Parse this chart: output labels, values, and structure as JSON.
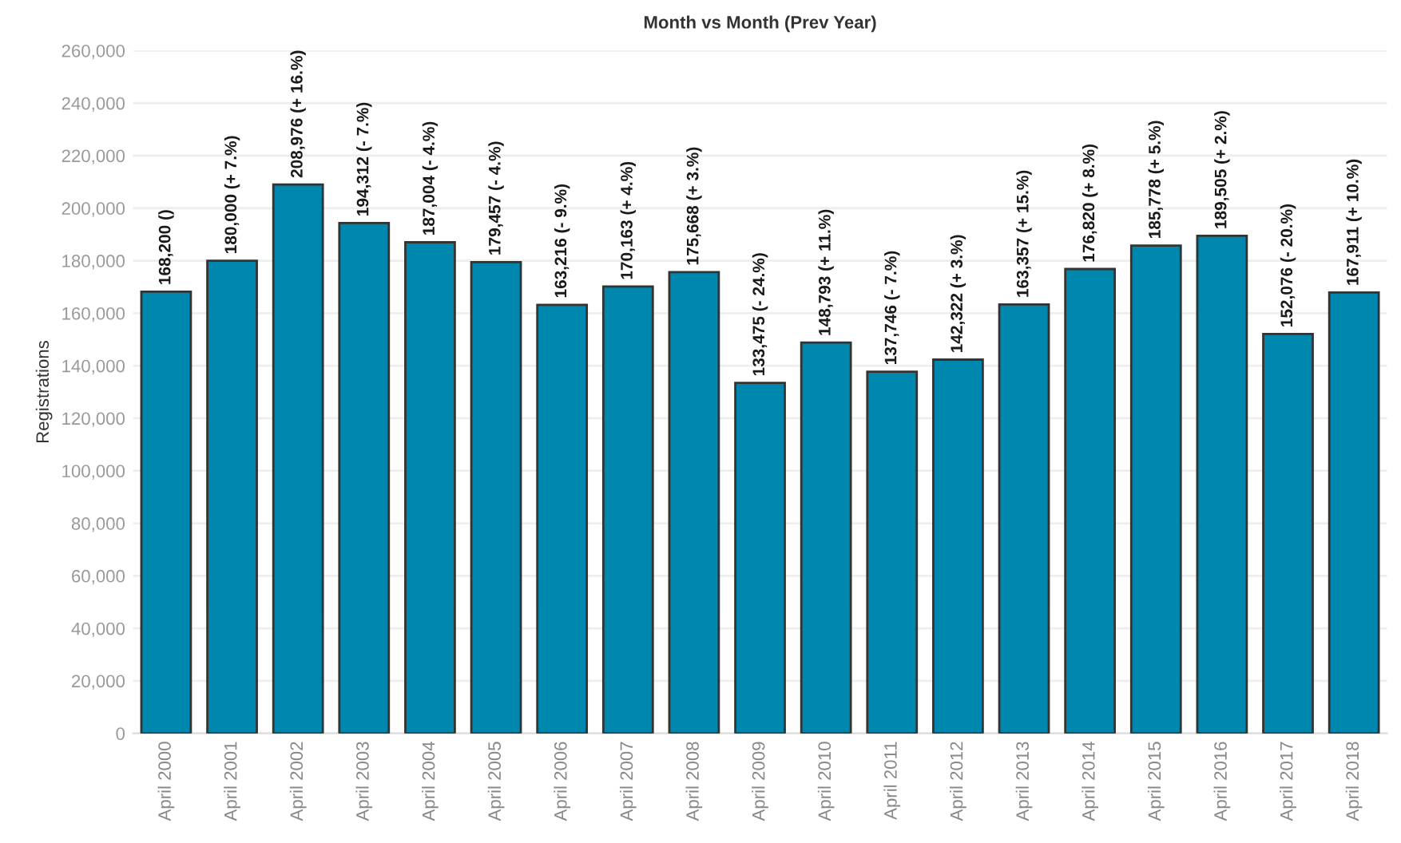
{
  "chart_data": {
    "type": "bar",
    "title": "Month vs Month (Prev Year)",
    "ylabel": "Registrations",
    "categories": [
      "April 2000",
      "April 2001",
      "April 2002",
      "April 2003",
      "April 2004",
      "April 2005",
      "April 2006",
      "April 2007",
      "April 2008",
      "April 2009",
      "April 2010",
      "April 2011",
      "April 2012",
      "April 2013",
      "April 2014",
      "April 2015",
      "April 2016",
      "April 2017",
      "April 2018"
    ],
    "values": [
      168200,
      180000,
      208976,
      194312,
      187004,
      179457,
      163216,
      170163,
      175668,
      133475,
      148793,
      137746,
      142322,
      163357,
      176820,
      185778,
      189505,
      152076,
      167911
    ],
    "value_labels": [
      "168,200 ()",
      "180,000 (+ 7.%)",
      "208,976 (+ 16.%)",
      "194,312 (- 7.%)",
      "187,004 (- 4.%)",
      "179,457 (- 4.%)",
      "163,216 (- 9.%)",
      "170,163 (+ 4.%)",
      "175,668 (+ 3.%)",
      "133,475 (- 24.%)",
      "148,793 (+ 11.%)",
      "137,746 (- 7.%)",
      "142,322 (+ 3.%)",
      "163,357 (+ 15.%)",
      "176,820 (+ 8.%)",
      "185,778 (+ 5.%)",
      "189,505 (+ 2.%)",
      "152,076 (- 20.%)",
      "167,911 (+ 10.%)"
    ],
    "color": "#0087ae",
    "ylim": [
      0,
      260000
    ],
    "yticks": [
      {
        "value": 0,
        "label": "0"
      },
      {
        "value": 20000,
        "label": "20,000"
      },
      {
        "value": 40000,
        "label": "40,000"
      },
      {
        "value": 60000,
        "label": "60,000"
      },
      {
        "value": 80000,
        "label": "80,000"
      },
      {
        "value": 100000,
        "label": "100,000"
      },
      {
        "value": 120000,
        "label": "120,000"
      },
      {
        "value": 140000,
        "label": "140,000"
      },
      {
        "value": 160000,
        "label": "160,000"
      },
      {
        "value": 180000,
        "label": "180,000"
      },
      {
        "value": 200000,
        "label": "200,000"
      },
      {
        "value": 220000,
        "label": "220,000"
      },
      {
        "value": 240000,
        "label": "240,000"
      },
      {
        "value": 260000,
        "label": "260,000"
      }
    ],
    "grid": "y",
    "legend": false
  }
}
